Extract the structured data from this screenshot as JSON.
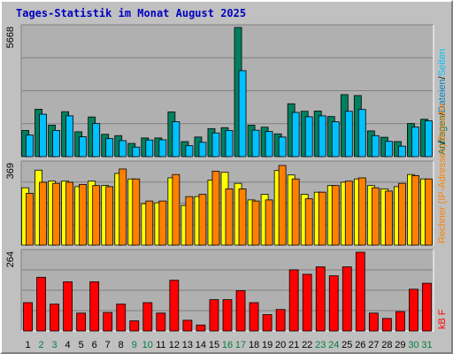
{
  "title": "Tages-Statistik im Monat August 2025",
  "colors": {
    "anfragen": "#008060",
    "dateien": "#00c0ff",
    "seiten": "#00c0ff",
    "rechner": "#ffff00",
    "besuche": "#ff8000",
    "kb": "#ff0000",
    "weekend_label": "#008040",
    "weekday_label": "#000000",
    "panel_bg": "#b0b0b0"
  },
  "chart_data": [
    {
      "type": "bar",
      "panel": "top",
      "ymax_label": "5668",
      "ylim": [
        0,
        5668
      ],
      "grid": true,
      "legend": [
        {
          "text": "Anfragen",
          "color": "#008060"
        },
        {
          "text": "/",
          "color": "#000000"
        },
        {
          "text": "Dateien",
          "color": "#0080c0"
        },
        {
          "text": "/",
          "color": "#000000"
        },
        {
          "text": "Seiten",
          "color": "#00c0ff"
        }
      ],
      "categories": [
        "1",
        "2",
        "3",
        "4",
        "5",
        "6",
        "7",
        "8",
        "9",
        "10",
        "11",
        "12",
        "13",
        "14",
        "15",
        "16",
        "17",
        "18",
        "19",
        "20",
        "21",
        "22",
        "23",
        "24",
        "25",
        "26",
        "27",
        "28",
        "29",
        "30",
        "31"
      ],
      "series": [
        {
          "name": "Anfragen",
          "values": [
            1150,
            2080,
            1380,
            1970,
            1090,
            1740,
            980,
            920,
            580,
            820,
            820,
            1960,
            660,
            860,
            1230,
            1270,
            5668,
            1380,
            1290,
            1000,
            2320,
            1990,
            2000,
            1760,
            2720,
            2680,
            1130,
            850,
            660,
            1450,
            1640
          ]
        },
        {
          "name": "Dateien",
          "values": [
            950,
            1860,
            1150,
            1790,
            870,
            1450,
            790,
            700,
            420,
            730,
            740,
            1530,
            480,
            630,
            1040,
            1150,
            3770,
            1160,
            1100,
            860,
            1940,
            1750,
            1790,
            1530,
            1990,
            2070,
            920,
            670,
            460,
            1300,
            1570
          ]
        }
      ]
    },
    {
      "type": "bar",
      "panel": "middle",
      "ymax_label": "369",
      "ylim": [
        0,
        369
      ],
      "grid": true,
      "legend": [
        {
          "text": "Rechner (IP-Adressen)",
          "color": "#ff8000"
        },
        {
          "text": "/",
          "color": "#000000"
        },
        {
          "text": "Besuche",
          "color": "#ff8000"
        }
      ],
      "categories": [
        "1",
        "2",
        "3",
        "4",
        "5",
        "6",
        "7",
        "8",
        "9",
        "10",
        "11",
        "12",
        "13",
        "14",
        "15",
        "16",
        "17",
        "18",
        "19",
        "20",
        "21",
        "22",
        "23",
        "24",
        "25",
        "26",
        "27",
        "28",
        "29",
        "30",
        "31"
      ],
      "series": [
        {
          "name": "Rechner (IP-Adressen)",
          "values": [
            260,
            340,
            290,
            290,
            265,
            290,
            270,
            325,
            300,
            188,
            192,
            305,
            180,
            220,
            295,
            330,
            280,
            205,
            230,
            338,
            318,
            230,
            240,
            270,
            285,
            300,
            270,
            255,
            265,
            320,
            300
          ]
        },
        {
          "name": "Besuche",
          "values": [
            235,
            285,
            280,
            285,
            275,
            270,
            265,
            345,
            300,
            200,
            200,
            320,
            220,
            230,
            335,
            255,
            255,
            200,
            205,
            361,
            300,
            210,
            240,
            270,
            290,
            305,
            260,
            245,
            280,
            315,
            300
          ]
        }
      ]
    },
    {
      "type": "bar",
      "panel": "bottom",
      "ymax_label": "264",
      "ylim": [
        0,
        264
      ],
      "grid": true,
      "legend": [
        {
          "text": "kB F",
          "color": "#ff0000"
        }
      ],
      "categories": [
        "1",
        "2",
        "3",
        "4",
        "5",
        "6",
        "7",
        "8",
        "9",
        "10",
        "11",
        "12",
        "13",
        "14",
        "15",
        "16",
        "17",
        "18",
        "19",
        "20",
        "21",
        "22",
        "23",
        "24",
        "25",
        "26",
        "27",
        "28",
        "29",
        "30",
        "31"
      ],
      "series": [
        {
          "name": "kB F",
          "values": [
            95,
            180,
            90,
            165,
            60,
            165,
            62,
            90,
            34,
            95,
            60,
            170,
            36,
            20,
            105,
            105,
            135,
            95,
            55,
            72,
            205,
            190,
            215,
            185,
            215,
            264,
            60,
            42,
            65,
            140,
            160
          ]
        }
      ]
    }
  ],
  "day_labels": [
    {
      "text": "1",
      "weekend": false
    },
    {
      "text": "2",
      "weekend": true
    },
    {
      "text": "3",
      "weekend": true
    },
    {
      "text": "4",
      "weekend": false
    },
    {
      "text": "5",
      "weekend": false
    },
    {
      "text": "6",
      "weekend": false
    },
    {
      "text": "7",
      "weekend": false
    },
    {
      "text": "8",
      "weekend": false
    },
    {
      "text": "9",
      "weekend": true
    },
    {
      "text": "10",
      "weekend": true
    },
    {
      "text": "11",
      "weekend": false
    },
    {
      "text": "12",
      "weekend": false
    },
    {
      "text": "13",
      "weekend": false
    },
    {
      "text": "14",
      "weekend": false
    },
    {
      "text": "15",
      "weekend": false
    },
    {
      "text": "16",
      "weekend": true
    },
    {
      "text": "17",
      "weekend": true
    },
    {
      "text": "18",
      "weekend": false
    },
    {
      "text": "19",
      "weekend": false
    },
    {
      "text": "20",
      "weekend": false
    },
    {
      "text": "21",
      "weekend": false
    },
    {
      "text": "22",
      "weekend": false
    },
    {
      "text": "23",
      "weekend": true
    },
    {
      "text": "24",
      "weekend": true
    },
    {
      "text": "25",
      "weekend": false
    },
    {
      "text": "26",
      "weekend": false
    },
    {
      "text": "27",
      "weekend": false
    },
    {
      "text": "28",
      "weekend": false
    },
    {
      "text": "29",
      "weekend": false
    },
    {
      "text": "30",
      "weekend": true
    },
    {
      "text": "31",
      "weekend": true
    }
  ]
}
